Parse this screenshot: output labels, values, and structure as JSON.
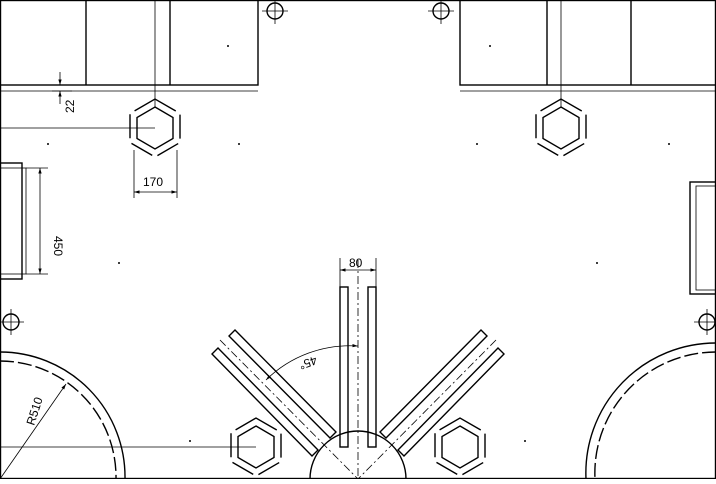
{
  "drawing": {
    "colors": {
      "line": "#000000",
      "background": "#ffffff"
    },
    "dimensions": {
      "gap_small": "22",
      "hex_width": "170",
      "bay_height": "450",
      "arm_width": "80",
      "arm_angle": "45°",
      "arc_radius": "R510"
    }
  }
}
